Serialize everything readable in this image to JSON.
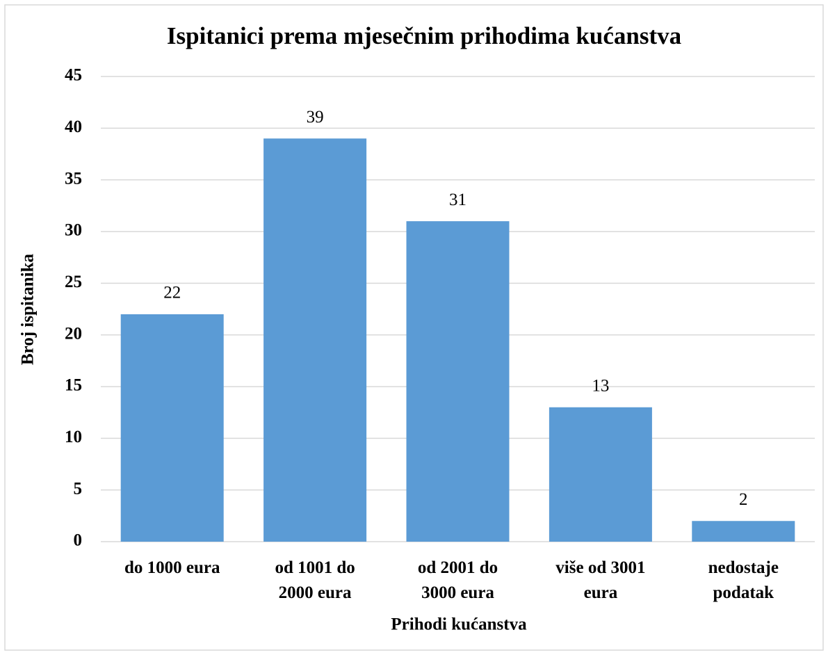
{
  "chart_data": {
    "type": "bar",
    "title": "Ispitanici prema mjesečnim prihodima kućanstva",
    "x_label": "Prihodi kućanstva",
    "y_label": "Broj ispitanika",
    "categories": [
      "do 1000 eura",
      "od 1001 do 2000 eura",
      "od 2001 do 3000 eura",
      "više od 3001 eura",
      "nedostaje podatak"
    ],
    "values": [
      22,
      39,
      31,
      13,
      2
    ],
    "color": "#5b9bd5",
    "ylim": [
      0,
      45
    ],
    "yticks": [
      0,
      5,
      10,
      15,
      20,
      25,
      30,
      35,
      40,
      45
    ],
    "grid": true
  }
}
